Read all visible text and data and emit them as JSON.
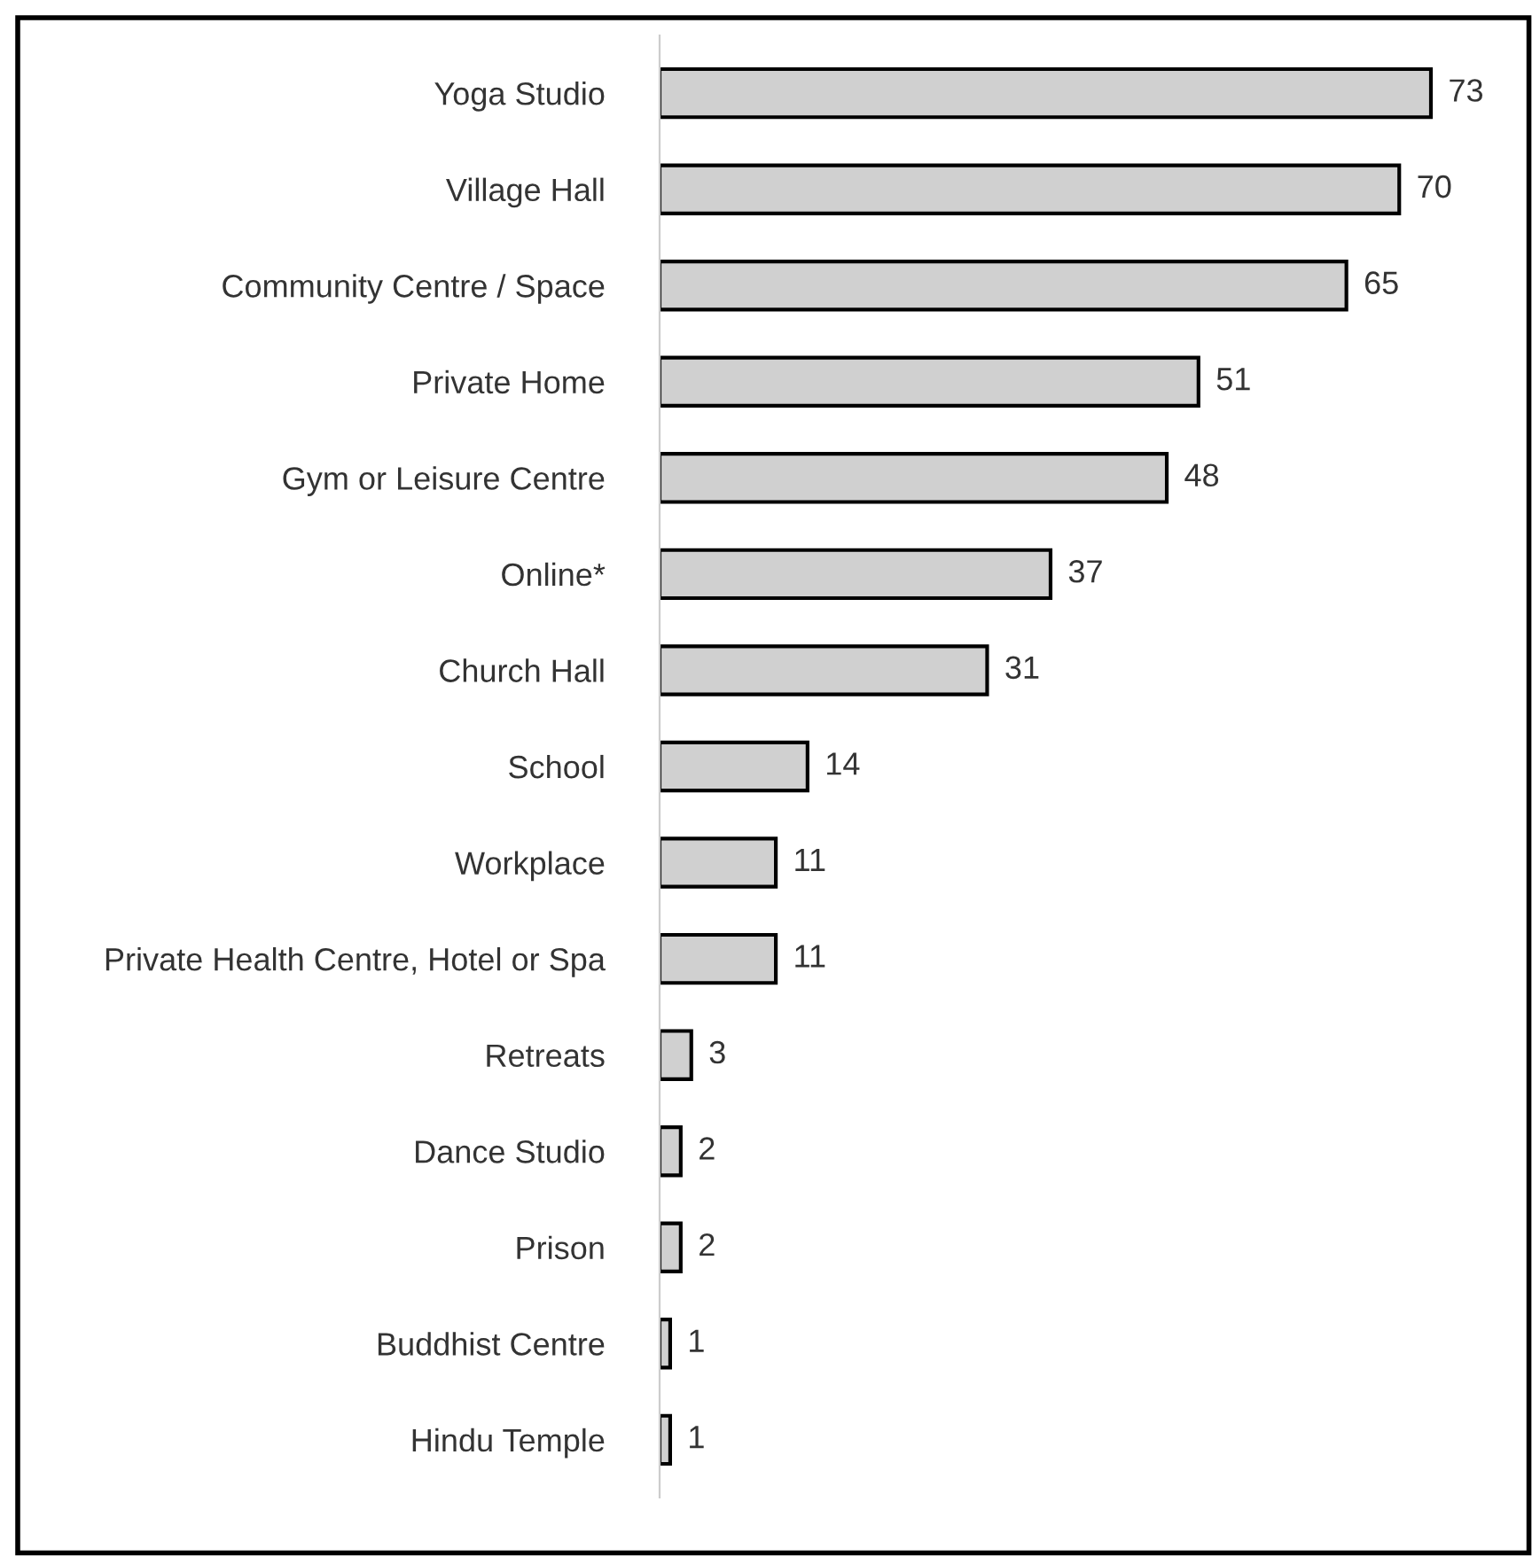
{
  "chart_data": {
    "type": "bar",
    "orientation": "horizontal",
    "categories": [
      "Yoga Studio",
      "Village Hall",
      "Community Centre / Space",
      "Private Home",
      "Gym or Leisure Centre",
      "Online*",
      "Church Hall",
      "School",
      "Workplace",
      "Private Health Centre, Hotel or Spa",
      "Retreats",
      "Dance Studio",
      "Prison",
      "Buddhist Centre",
      "Hindu Temple"
    ],
    "values": [
      73,
      70,
      65,
      51,
      48,
      37,
      31,
      14,
      11,
      11,
      3,
      2,
      2,
      1,
      1
    ],
    "color": "#d0d0d0",
    "data_labels": true,
    "grid": false,
    "legend": false
  }
}
